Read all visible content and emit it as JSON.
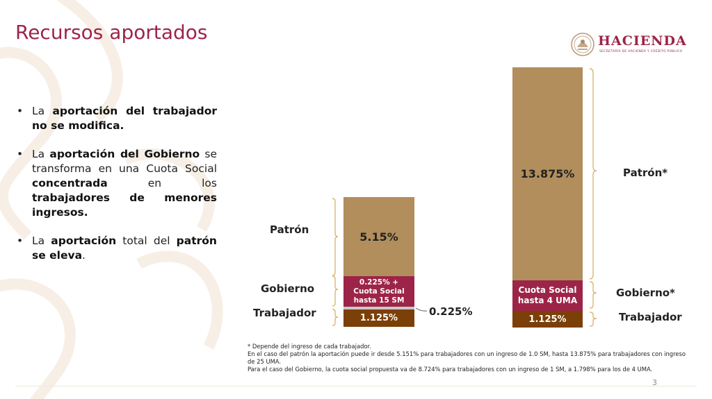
{
  "slide": {
    "title": "Recursos aportados",
    "page": "3"
  },
  "logo": {
    "name": "HACIENDA",
    "subtitle": "SECRETARÍA DE HACIENDA Y CRÉDITO PÚBLICO"
  },
  "bullets": [
    {
      "t1": "La",
      "b1": "aportación del trabajador no se modifica."
    },
    {
      "t1": "La",
      "b1": "aportación del Gobierno",
      "t2": "se transforma en una Cuota Social",
      "b2": "concentrada",
      "t3": "en los",
      "b3": "trabajadores de menores ingresos."
    },
    {
      "t1": "La",
      "b1": "aportación",
      "t2": "total del",
      "b2": "patrón se eleva",
      "t3": "."
    }
  ],
  "diagram": {
    "left": {
      "patron_label": "Patrón",
      "gobierno_label": "Gobierno",
      "trabajador_label": "Trabajador",
      "patron_value": "5.15%",
      "gobierno_value": "0.225% +\nCuota Social\nhasta 15 SM",
      "trabajador_value": "1.125%",
      "extra_value": "0.225%"
    },
    "right": {
      "patron_label": "Patrón*",
      "gobierno_label": "Gobierno*",
      "trabajador_label": "Trabajador",
      "patron_value": "13.875%",
      "gobierno_value": "Cuota Social\nhasta 4 UMA",
      "trabajador_value": "1.125%"
    }
  },
  "footnote": [
    "* Depende del ingreso de cada trabajador.",
    "En el caso del patrón la aportación puede ir desde 5.151% para trabajadores con un ingreso de 1.0 SM, hasta 13.875% para trabajadores con ingreso de 25 UMA.",
    "Para el caso del Gobierno, la cuota social propuesta va de 8.724% para trabajadores con un ingreso de 1 SM, a 1.798% para los de 4 UMA."
  ]
}
